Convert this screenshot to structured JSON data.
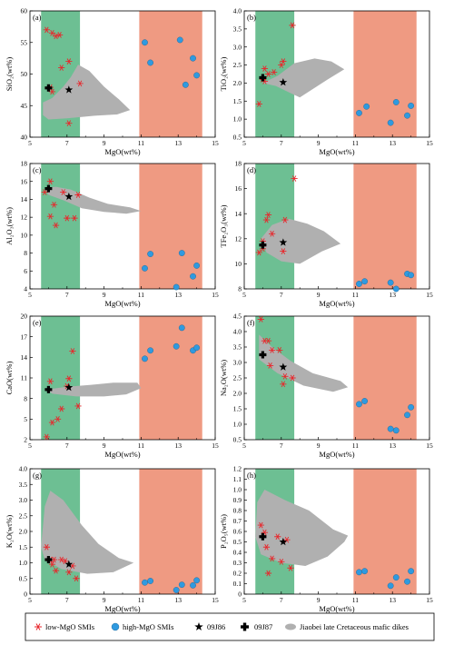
{
  "colors": {
    "green_band": "#6dbf93",
    "red_band": "#ef9a82",
    "dike_field": "#b0b0b0",
    "low_mgo": "#e8262b",
    "high_mgo": "#2f9ae0",
    "sample": "#000000"
  },
  "legend": {
    "low_mgo": "low-MgO SMIs",
    "high_mgo": "high-MgO SMIs",
    "s09j86": "09J86",
    "s09j87": "09J87",
    "dikes": "Jiaobei late Cretaceous mafic dikes"
  },
  "chart_data": [
    {
      "type": "scatter",
      "panel": "(a)",
      "xlabel": "MgO(wt%)",
      "ylabel": "SiO₂(wt%)",
      "xlim": [
        5,
        15
      ],
      "xticks": [
        "5",
        "7",
        "9",
        "11",
        "13",
        "15"
      ],
      "ylim": [
        40,
        60
      ],
      "yticks": [
        "40",
        "45",
        "50",
        "55",
        "60"
      ],
      "bands": [
        [
          5.6,
          7.7
        ],
        [
          10.9,
          14.3
        ]
      ],
      "dikes_field": [
        [
          5.7,
          45.5
        ],
        [
          6.2,
          46.2
        ],
        [
          6.8,
          48
        ],
        [
          7.2,
          49.5
        ],
        [
          7.6,
          51.5
        ],
        [
          8.2,
          50.5
        ],
        [
          9,
          48
        ],
        [
          9.8,
          46
        ],
        [
          10.4,
          44.3
        ],
        [
          9.7,
          43.6
        ],
        [
          8.5,
          43.4
        ],
        [
          7,
          43
        ],
        [
          6,
          42.8
        ],
        [
          5.7,
          43.5
        ]
      ],
      "low_mgo": [
        [
          5.9,
          57
        ],
        [
          6.2,
          56.5
        ],
        [
          6.4,
          56
        ],
        [
          6.6,
          56.2
        ],
        [
          6.7,
          51
        ],
        [
          7.1,
          52
        ],
        [
          7.1,
          42.2
        ],
        [
          7.7,
          48.5
        ],
        [
          6.2,
          47.2
        ],
        [
          6.1,
          47.9
        ]
      ],
      "high_mgo": [
        [
          11.2,
          55
        ],
        [
          11.5,
          51.8
        ],
        [
          13.1,
          55.4
        ],
        [
          13.4,
          48.3
        ],
        [
          13.8,
          52.5
        ],
        [
          14.0,
          49.8
        ]
      ],
      "s09j86": [
        7.1,
        47.5
      ],
      "s09j87": [
        6.0,
        47.8
      ]
    },
    {
      "type": "scatter",
      "panel": "(b)",
      "xlabel": "MgO(wt%)",
      "ylabel": "TiO₂(wt%)",
      "xlim": [
        5,
        15
      ],
      "xticks": [
        "5",
        "7",
        "9",
        "11",
        "13",
        "15"
      ],
      "ylim": [
        0.5,
        4
      ],
      "yticks": [
        "0.5",
        "1.0",
        "1.5",
        "2.0",
        "2.5",
        "3.0",
        "3.5",
        "4.0"
      ],
      "bands": [
        [
          5.6,
          7.7
        ],
        [
          10.9,
          14.3
        ]
      ],
      "dikes_field": [
        [
          6,
          2.0
        ],
        [
          6.8,
          2.2
        ],
        [
          7.7,
          2.55
        ],
        [
          8.8,
          2.68
        ],
        [
          9.7,
          2.6
        ],
        [
          10.4,
          2.38
        ],
        [
          9.5,
          2.1
        ],
        [
          8.6,
          1.8
        ],
        [
          8,
          1.6
        ],
        [
          7.5,
          1.72
        ],
        [
          6.7,
          1.92
        ]
      ],
      "low_mgo": [
        [
          5.8,
          1.42
        ],
        [
          6.0,
          2.1
        ],
        [
          6.1,
          2.4
        ],
        [
          6.3,
          2.25
        ],
        [
          6.6,
          2.3
        ],
        [
          7.0,
          2.5
        ],
        [
          7.1,
          2.6
        ],
        [
          7.6,
          3.6
        ],
        [
          6.1,
          2.05
        ]
      ],
      "high_mgo": [
        [
          11.2,
          1.17
        ],
        [
          11.6,
          1.35
        ],
        [
          12.9,
          0.9
        ],
        [
          13.2,
          1.47
        ],
        [
          13.8,
          1.1
        ],
        [
          14.0,
          1.37
        ]
      ],
      "s09j86": [
        7.1,
        2.02
      ],
      "s09j87": [
        6.0,
        2.15
      ]
    },
    {
      "type": "scatter",
      "panel": "(c)",
      "xlabel": "MgO(wt%)",
      "ylabel": "Al₂O₃(wt%)",
      "xlim": [
        5,
        15
      ],
      "xticks": [
        "5",
        "7",
        "9",
        "11",
        "13",
        "15"
      ],
      "ylim": [
        4,
        18
      ],
      "yticks": [
        "4",
        "6",
        "8",
        "10",
        "12",
        "14",
        "16",
        "18"
      ],
      "bands": [
        [
          5.6,
          7.7
        ],
        [
          10.9,
          14.3
        ]
      ],
      "dikes_field": [
        [
          5.8,
          15.3
        ],
        [
          6.4,
          15.4
        ],
        [
          7.2,
          15.1
        ],
        [
          8.2,
          14.2
        ],
        [
          9.2,
          13.5
        ],
        [
          10.4,
          13.1
        ],
        [
          11,
          12.7
        ],
        [
          10.2,
          12.4
        ],
        [
          9,
          12.6
        ],
        [
          7.8,
          13
        ],
        [
          6.8,
          13.9
        ],
        [
          6,
          14.5
        ]
      ],
      "low_mgo": [
        [
          5.8,
          14.8
        ],
        [
          6.1,
          16.0
        ],
        [
          6.3,
          13.4
        ],
        [
          6.1,
          12.1
        ],
        [
          6.4,
          11.1
        ],
        [
          6.8,
          14.8
        ],
        [
          7.0,
          11.9
        ],
        [
          7.4,
          11.9
        ],
        [
          7.6,
          14.5
        ]
      ],
      "high_mgo": [
        [
          11.2,
          6.3
        ],
        [
          11.5,
          7.9
        ],
        [
          12.9,
          4.2
        ],
        [
          13.2,
          8.0
        ],
        [
          13.8,
          5.4
        ],
        [
          14.0,
          6.6
        ]
      ],
      "s09j86": [
        7.1,
        14.3
      ],
      "s09j87": [
        6.0,
        15.2
      ]
    },
    {
      "type": "scatter",
      "panel": "(d)",
      "xlabel": "MgO(wt%)",
      "ylabel": "TFe₂O₃(wt%)",
      "xlim": [
        5,
        15
      ],
      "xticks": [
        "5",
        "7",
        "9",
        "11",
        "13",
        "15"
      ],
      "ylim": [
        8,
        18
      ],
      "yticks": [
        "8",
        "10",
        "12",
        "14",
        "16",
        "18"
      ],
      "bands": [
        [
          5.6,
          7.7
        ],
        [
          10.9,
          14.3
        ]
      ],
      "dikes_field": [
        [
          5.9,
          12.0
        ],
        [
          6.5,
          13.1
        ],
        [
          7.4,
          13.6
        ],
        [
          8.4,
          13.2
        ],
        [
          9.3,
          12.6
        ],
        [
          10.2,
          11.6
        ],
        [
          9.2,
          11.0
        ],
        [
          8,
          10.0
        ],
        [
          7,
          10.2
        ],
        [
          6.2,
          10.9
        ]
      ],
      "low_mgo": [
        [
          5.8,
          10.9
        ],
        [
          6.0,
          11.8
        ],
        [
          6.2,
          13.5
        ],
        [
          6.3,
          13.9
        ],
        [
          6.5,
          12.4
        ],
        [
          7.1,
          11.0
        ],
        [
          7.2,
          13.5
        ],
        [
          7.7,
          16.8
        ],
        [
          6.0,
          11.2
        ]
      ],
      "high_mgo": [
        [
          11.2,
          8.4
        ],
        [
          11.5,
          8.6
        ],
        [
          12.9,
          8.5
        ],
        [
          13.2,
          8.0
        ],
        [
          13.8,
          9.2
        ],
        [
          14.0,
          9.1
        ]
      ],
      "s09j86": [
        7.1,
        11.7
      ],
      "s09j87": [
        6.0,
        11.5
      ]
    },
    {
      "type": "scatter",
      "panel": "(e)",
      "xlabel": "MgO(wt%)",
      "ylabel": "CaO(wt%)",
      "xlim": [
        5,
        15
      ],
      "xticks": [
        "5",
        "7",
        "9",
        "11",
        "13",
        "15"
      ],
      "ylim": [
        2,
        20
      ],
      "yticks": [
        "2",
        "5",
        "8",
        "11",
        "14",
        "17",
        "20"
      ],
      "bands": [
        [
          5.6,
          7.7
        ],
        [
          10.9,
          14.3
        ]
      ],
      "dikes_field": [
        [
          5.9,
          9.3
        ],
        [
          7,
          9.7
        ],
        [
          8.3,
          10.0
        ],
        [
          9.5,
          10.3
        ],
        [
          10.8,
          10.3
        ],
        [
          11,
          9.5
        ],
        [
          10.2,
          8.6
        ],
        [
          9,
          8.3
        ],
        [
          7.5,
          8.3
        ],
        [
          6.2,
          8.7
        ]
      ],
      "low_mgo": [
        [
          5.9,
          2.4
        ],
        [
          6.1,
          10.5
        ],
        [
          6.2,
          4.5
        ],
        [
          6.5,
          5.0
        ],
        [
          6.7,
          6.5
        ],
        [
          7.0,
          9.8
        ],
        [
          7.1,
          10.9
        ],
        [
          7.3,
          14.9
        ],
        [
          7.6,
          6.9
        ]
      ],
      "high_mgo": [
        [
          11.2,
          13.8
        ],
        [
          11.5,
          15.0
        ],
        [
          12.9,
          15.6
        ],
        [
          13.2,
          18.3
        ],
        [
          13.8,
          15.0
        ],
        [
          14.0,
          15.4
        ]
      ],
      "s09j86": [
        7.1,
        9.6
      ],
      "s09j87": [
        6.0,
        9.3
      ]
    },
    {
      "type": "scatter",
      "panel": "(f)",
      "xlabel": "MgO(wt%)",
      "ylabel": "Na₂O(wt%)",
      "xlim": [
        5,
        15
      ],
      "xticks": [
        "5",
        "7",
        "9",
        "11",
        "13",
        "15"
      ],
      "ylim": [
        0.5,
        4.5
      ],
      "yticks": [
        "0.5",
        "1.0",
        "1.5",
        "2.0",
        "2.5",
        "3.0",
        "3.5",
        "4.0",
        "4.5"
      ],
      "bands": [
        [
          5.6,
          7.7
        ],
        [
          10.9,
          14.3
        ]
      ],
      "dikes_field": [
        [
          5.8,
          3.9
        ],
        [
          6.5,
          3.5
        ],
        [
          7.5,
          3.05
        ],
        [
          8.7,
          2.65
        ],
        [
          10.2,
          2.4
        ],
        [
          10.6,
          2.2
        ],
        [
          9.8,
          2.05
        ],
        [
          8.2,
          2.25
        ],
        [
          6.8,
          2.65
        ],
        [
          5.8,
          3.1
        ]
      ],
      "low_mgo": [
        [
          5.9,
          4.4
        ],
        [
          6.1,
          3.7
        ],
        [
          6.3,
          3.7
        ],
        [
          6.5,
          3.4
        ],
        [
          6.9,
          3.4
        ],
        [
          7.1,
          2.3
        ],
        [
          7.2,
          2.55
        ],
        [
          7.6,
          2.5
        ],
        [
          6.4,
          2.9
        ]
      ],
      "high_mgo": [
        [
          11.2,
          1.65
        ],
        [
          11.5,
          1.75
        ],
        [
          12.9,
          0.85
        ],
        [
          13.2,
          0.8
        ],
        [
          13.8,
          1.3
        ],
        [
          14.0,
          1.55
        ]
      ],
      "s09j86": [
        7.1,
        2.85
      ],
      "s09j87": [
        6.0,
        3.25
      ]
    },
    {
      "type": "scatter",
      "panel": "(g)",
      "xlabel": "MgO(wt%)",
      "ylabel": "K₂O(wt%)",
      "xlim": [
        5,
        15
      ],
      "xticks": [
        "5",
        "7",
        "9",
        "11",
        "13",
        "15"
      ],
      "ylim": [
        0,
        4
      ],
      "yticks": [
        "0",
        "0.5",
        "1.0",
        "1.5",
        "2.0",
        "2.5",
        "3.0",
        "3.5",
        "4.0"
      ],
      "bands": [
        [
          5.6,
          7.7
        ],
        [
          10.9,
          14.3
        ]
      ],
      "dikes_field": [
        [
          5.6,
          1.5
        ],
        [
          5.8,
          2.8
        ],
        [
          6.1,
          3.3
        ],
        [
          6.8,
          3.0
        ],
        [
          7.8,
          2.2
        ],
        [
          8.7,
          1.6
        ],
        [
          9.8,
          1.15
        ],
        [
          10.6,
          1.0
        ],
        [
          9.5,
          0.7
        ],
        [
          8.1,
          0.65
        ],
        [
          6.7,
          0.8
        ],
        [
          5.8,
          1.1
        ]
      ],
      "low_mgo": [
        [
          5.9,
          1.5
        ],
        [
          6.1,
          1.1
        ],
        [
          6.3,
          1.1
        ],
        [
          6.4,
          0.75
        ],
        [
          6.7,
          1.1
        ],
        [
          6.9,
          1.05
        ],
        [
          7.1,
          0.7
        ],
        [
          7.3,
          0.9
        ],
        [
          7.5,
          0.5
        ],
        [
          6.2,
          0.95
        ]
      ],
      "high_mgo": [
        [
          11.2,
          0.37
        ],
        [
          11.5,
          0.42
        ],
        [
          12.9,
          0.13
        ],
        [
          13.2,
          0.3
        ],
        [
          13.8,
          0.28
        ],
        [
          14.0,
          0.44
        ]
      ],
      "s09j86": [
        7.1,
        0.95
      ],
      "s09j87": [
        6.0,
        1.1
      ]
    },
    {
      "type": "scatter",
      "panel": "(h)",
      "xlabel": "MgO(wt%)",
      "ylabel": "P₂O₅(wt%)",
      "xlim": [
        5,
        15
      ],
      "xticks": [
        "5",
        "7",
        "9",
        "11",
        "13",
        "15"
      ],
      "ylim": [
        0,
        1.2
      ],
      "yticks": [
        "0",
        "0.1",
        "0.2",
        "0.3",
        "0.4",
        "0.5",
        "0.6",
        "0.7",
        "0.8",
        "0.9",
        "1.0",
        "1.1",
        "1.2"
      ],
      "bands": [
        [
          5.6,
          7.7
        ],
        [
          10.9,
          14.3
        ]
      ],
      "dikes_field": [
        [
          5.6,
          0.55
        ],
        [
          5.7,
          0.88
        ],
        [
          6.1,
          1.0
        ],
        [
          7.2,
          0.9
        ],
        [
          8.5,
          0.8
        ],
        [
          9.8,
          0.62
        ],
        [
          10.6,
          0.56
        ],
        [
          10.4,
          0.5
        ],
        [
          9.5,
          0.36
        ],
        [
          8.3,
          0.27
        ],
        [
          7,
          0.3
        ],
        [
          5.9,
          0.38
        ]
      ],
      "low_mgo": [
        [
          5.9,
          0.66
        ],
        [
          6.1,
          0.59
        ],
        [
          6.3,
          0.2
        ],
        [
          6.5,
          0.34
        ],
        [
          6.8,
          0.55
        ],
        [
          7.0,
          0.31
        ],
        [
          7.3,
          0.52
        ],
        [
          7.5,
          0.25
        ],
        [
          6.2,
          0.45
        ]
      ],
      "high_mgo": [
        [
          11.2,
          0.21
        ],
        [
          11.5,
          0.22
        ],
        [
          12.9,
          0.08
        ],
        [
          13.2,
          0.16
        ],
        [
          13.8,
          0.12
        ],
        [
          14.0,
          0.22
        ]
      ],
      "s09j86": [
        7.1,
        0.5
      ],
      "s09j87": [
        6.0,
        0.55
      ]
    }
  ]
}
